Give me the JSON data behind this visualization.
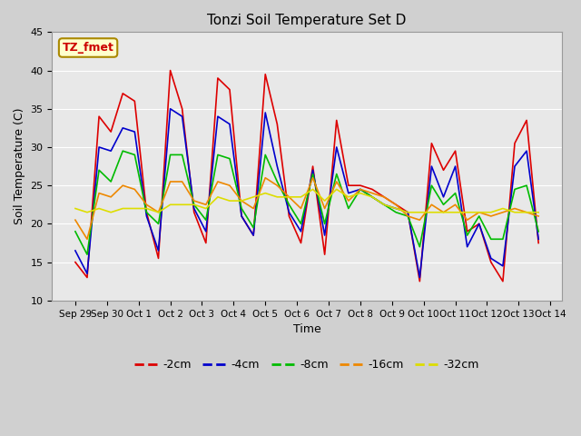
{
  "title": "Tonzi Soil Temperature Set D",
  "xlabel": "Time",
  "ylabel": "Soil Temperature (C)",
  "annotation": "TZ_fmet",
  "ylim": [
    10,
    45
  ],
  "background_color": "#e8e8e8",
  "plot_bg": "#e8e8e8",
  "series": {
    "-2cm": {
      "color": "#dd0000",
      "values": [
        15.0,
        13.0,
        34.0,
        32.0,
        37.0,
        36.0,
        21.5,
        15.5,
        40.0,
        35.0,
        21.5,
        17.5,
        39.0,
        37.5,
        21.0,
        18.5,
        39.5,
        33.0,
        21.0,
        17.5,
        27.5,
        16.0,
        33.5,
        25.0,
        25.0,
        24.5,
        23.5,
        22.5,
        21.5,
        12.5,
        30.5,
        27.0,
        29.5,
        19.0,
        20.0,
        15.0,
        12.5,
        30.5,
        33.5,
        17.5
      ]
    },
    "-4cm": {
      "color": "#0000cc",
      "values": [
        16.5,
        13.5,
        30.0,
        29.5,
        32.5,
        32.0,
        21.0,
        16.5,
        35.0,
        34.0,
        22.0,
        19.0,
        34.0,
        33.0,
        21.0,
        18.5,
        34.5,
        27.5,
        21.5,
        19.0,
        27.0,
        18.5,
        30.0,
        24.0,
        24.5,
        23.5,
        22.5,
        22.0,
        21.5,
        13.0,
        27.5,
        23.5,
        27.5,
        17.0,
        20.0,
        15.5,
        14.5,
        27.5,
        29.5,
        18.0
      ]
    },
    "-8cm": {
      "color": "#00bb00",
      "values": [
        19.0,
        16.0,
        27.0,
        25.5,
        29.5,
        29.0,
        21.5,
        20.0,
        29.0,
        29.0,
        22.5,
        20.5,
        29.0,
        28.5,
        22.0,
        19.5,
        29.0,
        25.5,
        22.5,
        20.0,
        26.5,
        20.0,
        26.5,
        22.0,
        24.5,
        23.5,
        22.5,
        21.5,
        21.0,
        17.0,
        25.0,
        22.5,
        24.0,
        18.5,
        21.0,
        18.0,
        18.0,
        24.5,
        25.0,
        19.0
      ]
    },
    "-16cm": {
      "color": "#ee8800",
      "values": [
        20.5,
        18.0,
        24.0,
        23.5,
        25.0,
        24.5,
        22.5,
        21.5,
        25.5,
        25.5,
        23.0,
        22.5,
        25.5,
        25.0,
        23.0,
        22.0,
        26.0,
        25.0,
        23.5,
        22.0,
        26.0,
        22.0,
        25.5,
        23.0,
        24.5,
        24.0,
        23.5,
        22.5,
        21.0,
        20.5,
        22.5,
        21.5,
        22.5,
        20.5,
        21.5,
        21.0,
        21.5,
        22.0,
        21.5,
        21.0
      ]
    },
    "-32cm": {
      "color": "#dddd00",
      "values": [
        22.0,
        21.5,
        22.0,
        21.5,
        22.0,
        22.0,
        22.0,
        21.5,
        22.5,
        22.5,
        22.5,
        22.0,
        23.5,
        23.0,
        23.0,
        23.5,
        24.0,
        23.5,
        23.5,
        23.5,
        24.5,
        23.0,
        24.5,
        23.5,
        24.0,
        23.5,
        22.5,
        22.0,
        21.5,
        21.5,
        21.5,
        21.5,
        21.5,
        21.5,
        21.5,
        21.5,
        22.0,
        21.5,
        21.5,
        21.5
      ]
    }
  },
  "n_points": 40,
  "hours_per_step": 9,
  "xtick_labels": [
    "Sep 29",
    "Sep 30",
    "Oct 1",
    "Oct 2",
    "Oct 3",
    "Oct 4",
    "Oct 5",
    "Oct 6",
    "Oct 7",
    "Oct 8",
    "Oct 9",
    "Oct 10",
    "Oct 11",
    "Oct 12",
    "Oct 13",
    "Oct 14"
  ],
  "ytick_labels": [
    10,
    15,
    20,
    25,
    30,
    35,
    40,
    45
  ],
  "legend_order": [
    "-2cm",
    "-4cm",
    "-8cm",
    "-16cm",
    "-32cm"
  ]
}
